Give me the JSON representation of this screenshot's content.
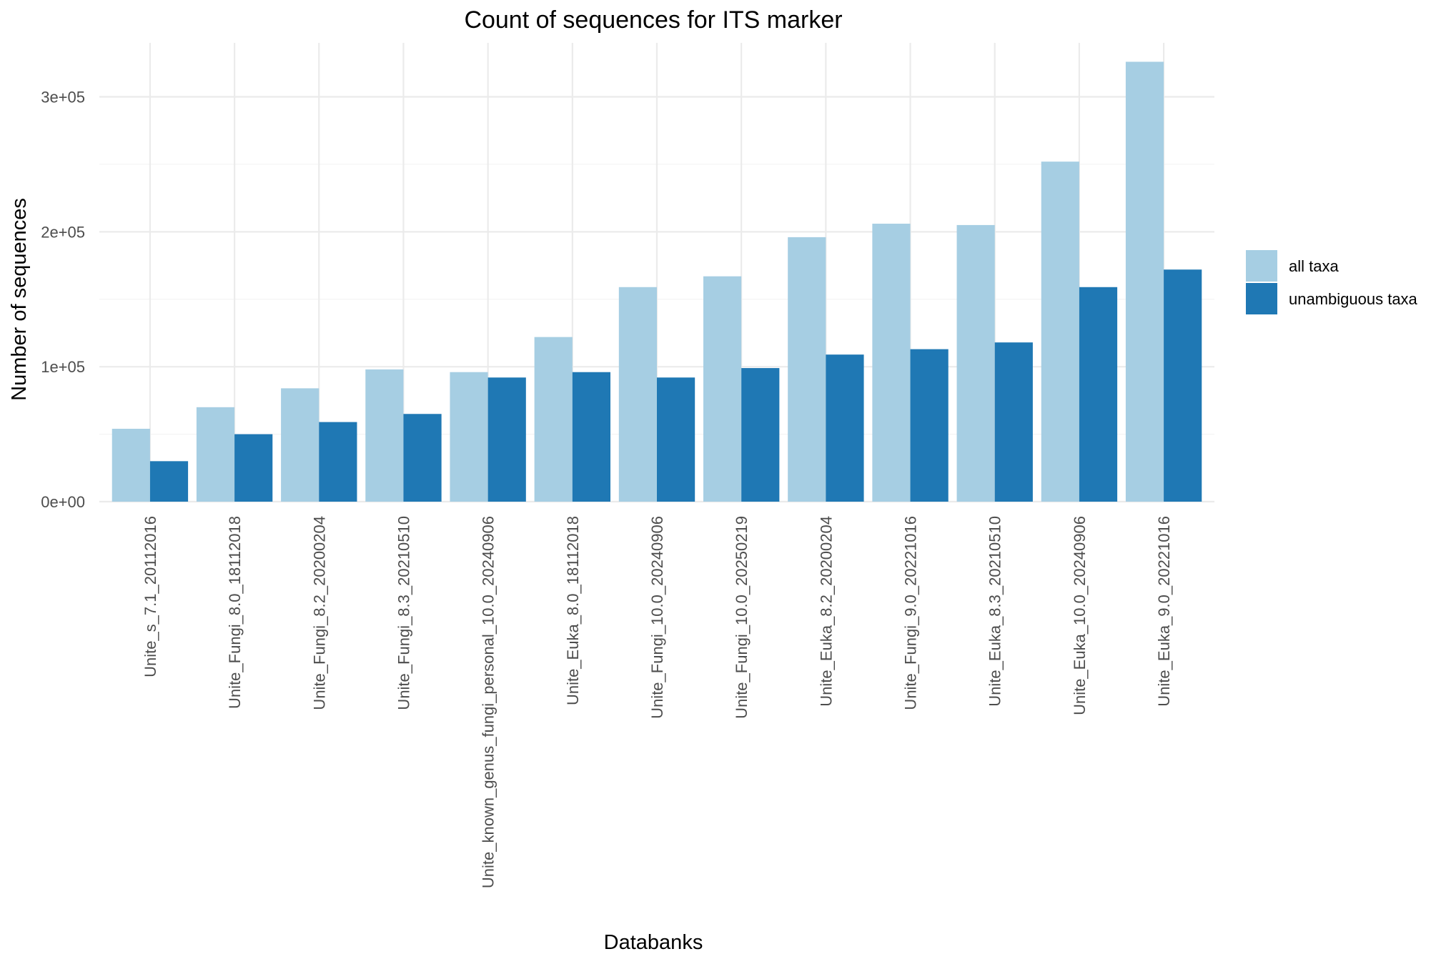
{
  "chart_data": {
    "type": "bar",
    "title": "Count of sequences for ITS marker",
    "xlabel": "Databanks",
    "ylabel": "Number of sequences",
    "ylim": [
      0,
      340000
    ],
    "yticks": [
      0,
      100000,
      200000,
      300000
    ],
    "ytick_labels": [
      "0e+00",
      "1e+05",
      "2e+05",
      "3e+05"
    ],
    "grid": true,
    "legend_position": "right",
    "categories": [
      "Unite_s_7.1_20112016",
      "Unite_Fungi_8.0_18112018",
      "Unite_Fungi_8.2_20200204",
      "Unite_Fungi_8.3_20210510",
      "Unite_known_genus_fungi_personal_10.0_20240906",
      "Unite_Euka_8.0_18112018",
      "Unite_Fungi_10.0_20240906",
      "Unite_Fungi_10.0_20250219",
      "Unite_Euka_8.2_20200204",
      "Unite_Fungi_9.0_20221016",
      "Unite_Euka_8.3_20210510",
      "Unite_Euka_10.0_20240906",
      "Unite_Euka_9.0_20221016"
    ],
    "series": [
      {
        "name": "all taxa",
        "color": "#a6cee3",
        "values": [
          54000,
          70000,
          84000,
          98000,
          96000,
          122000,
          159000,
          167000,
          196000,
          206000,
          205000,
          252000,
          326000
        ]
      },
      {
        "name": "unambiguous taxa",
        "color": "#1f78b4",
        "values": [
          30000,
          50000,
          59000,
          65000,
          92000,
          96000,
          92000,
          99000,
          109000,
          113000,
          118000,
          159000,
          172000
        ]
      }
    ]
  }
}
